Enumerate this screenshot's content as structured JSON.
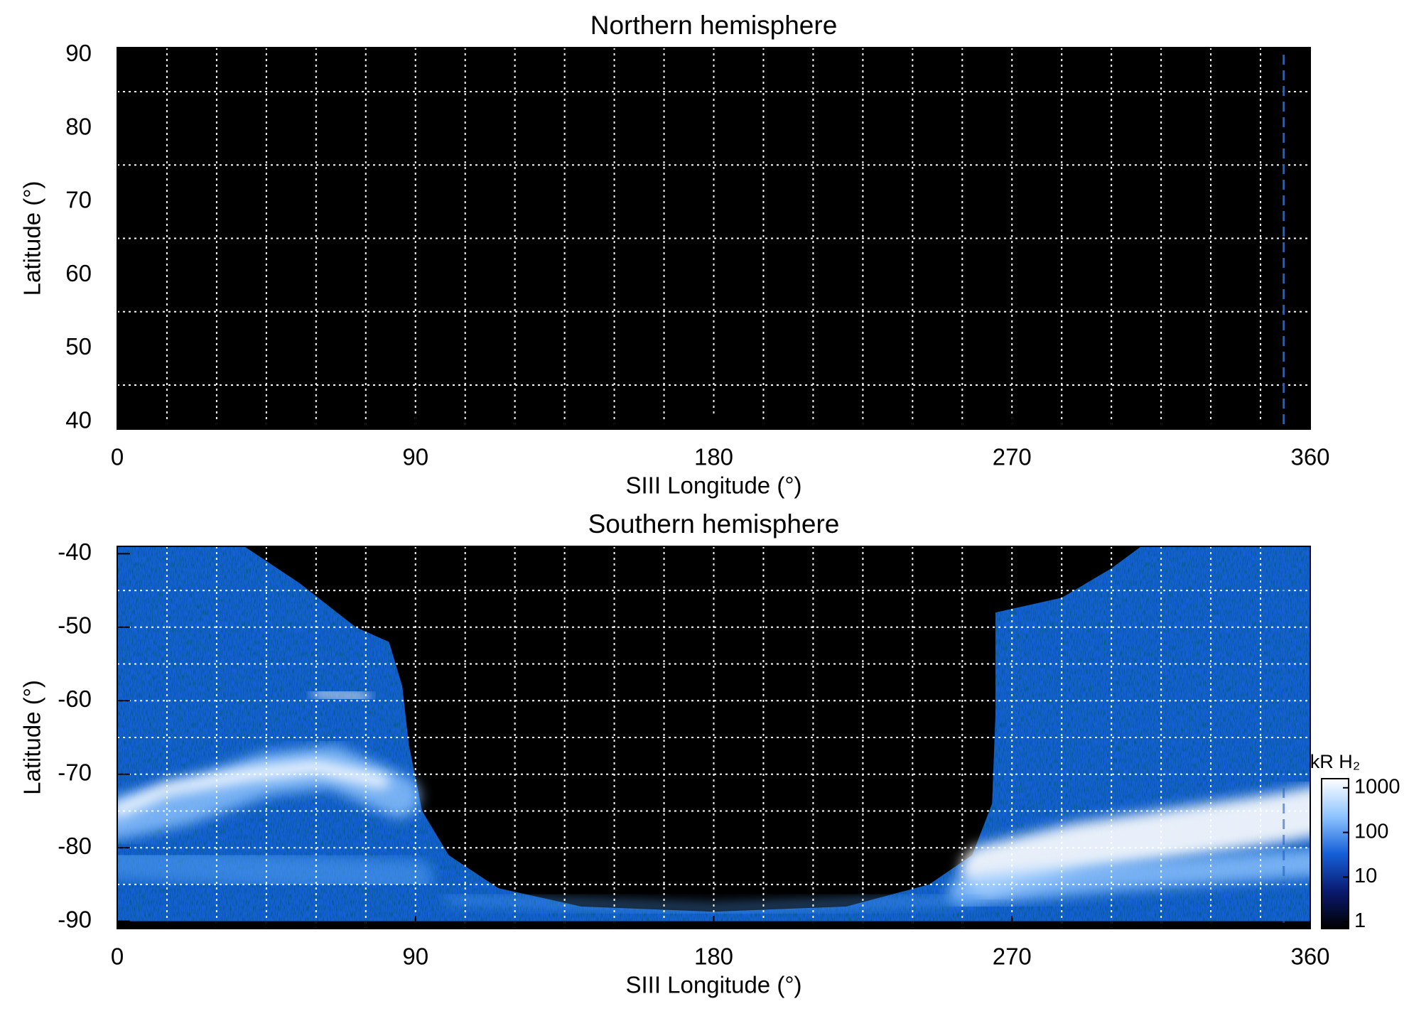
{
  "chart_data": [
    {
      "type": "heatmap",
      "title": "Northern hemisphere",
      "x_label": "SIII Longitude (°)",
      "y_label": "Latitude (°)",
      "xlim": [
        0,
        360
      ],
      "ylim": [
        39,
        91
      ],
      "xticks": [
        0,
        90,
        180,
        270,
        360
      ],
      "yticks": [
        40,
        50,
        60,
        70,
        80,
        90
      ],
      "xgrid": [
        15,
        30,
        45,
        60,
        75,
        90,
        105,
        120,
        135,
        150,
        165,
        180,
        195,
        210,
        225,
        240,
        255,
        270,
        285,
        300,
        315,
        330,
        345
      ],
      "ygrid": [
        45,
        55,
        65,
        75,
        85
      ],
      "marker_lon": 352,
      "marker_color": "#1f5fc8",
      "emission": false
    },
    {
      "type": "heatmap",
      "title": "Southern hemisphere",
      "x_label": "SIII Longitude (°)",
      "y_label": "Latitude (°)",
      "xlim": [
        0,
        360
      ],
      "ylim": [
        -91,
        -39
      ],
      "xticks": [
        0,
        90,
        180,
        270,
        360
      ],
      "yticks": [
        -90,
        -80,
        -70,
        -60,
        -50,
        -40
      ],
      "xgrid": [
        15,
        30,
        45,
        60,
        75,
        90,
        105,
        120,
        135,
        150,
        165,
        180,
        195,
        210,
        225,
        240,
        255,
        270,
        285,
        300,
        315,
        330,
        345
      ],
      "ygrid": [
        -85,
        -80,
        -75,
        -70,
        -65,
        -60,
        -55,
        -50,
        -45
      ],
      "marker_lon": 352,
      "marker_color": "#1f5fc8",
      "emission": true,
      "colorbar": {
        "label": "kR H₂",
        "lim": [
          0.7,
          1600
        ],
        "ticks": [
          1,
          10,
          100,
          1000
        ],
        "log": true,
        "colors": [
          "#000000",
          "#0a1a70",
          "#1560d8",
          "#8fc4ff",
          "#ffffff"
        ]
      }
    }
  ]
}
